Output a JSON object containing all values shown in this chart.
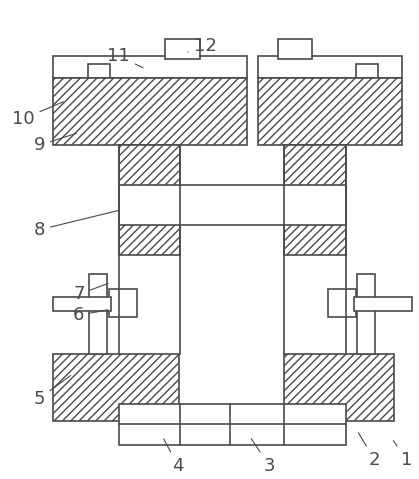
{
  "fig_width": 4.19,
  "fig_height": 4.79,
  "dpi": 100,
  "bg_color": "#ffffff",
  "lc": "#4a4a4a",
  "lw": 1.2,
  "hatch": "////"
}
